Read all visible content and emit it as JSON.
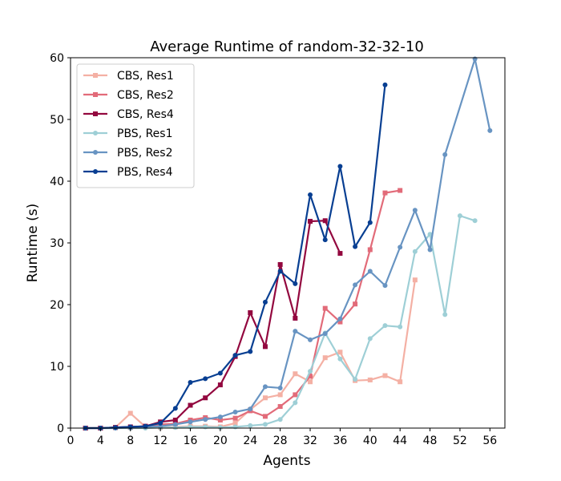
{
  "chart_data": {
    "type": "line",
    "title": "Average Runtime of random-32-32-10",
    "xlabel": "Agents",
    "ylabel": "Runtime (s)",
    "xlim": [
      0,
      58
    ],
    "ylim": [
      0,
      60
    ],
    "xticks": [
      0,
      4,
      8,
      12,
      16,
      20,
      24,
      28,
      32,
      36,
      40,
      44,
      48,
      52,
      56
    ],
    "yticks": [
      0,
      10,
      20,
      30,
      40,
      50,
      60
    ],
    "grid": false,
    "legend_position": "top-left",
    "series": [
      {
        "name": "CBS, Res1",
        "color": "#f4b0a4",
        "marker": "square",
        "x": [
          2,
          4,
          6,
          8,
          10,
          12,
          14,
          16,
          18,
          20,
          22,
          24,
          26,
          28,
          30,
          32,
          34,
          36,
          38,
          40,
          42,
          44,
          46
        ],
        "y": [
          0.0,
          0.0,
          0.1,
          2.4,
          0.2,
          0.1,
          0.2,
          0.3,
          0.3,
          0.2,
          0.8,
          3.0,
          4.9,
          5.4,
          8.8,
          7.5,
          11.4,
          12.3,
          7.7,
          7.8,
          8.5,
          7.5,
          24.0
        ]
      },
      {
        "name": "CBS, Res2",
        "color": "#e26b79",
        "marker": "square",
        "x": [
          2,
          4,
          6,
          8,
          10,
          12,
          14,
          16,
          18,
          20,
          22,
          24,
          26,
          28,
          30,
          32,
          34,
          36,
          38,
          40,
          42,
          44
        ],
        "y": [
          0.0,
          0.0,
          0.1,
          0.1,
          0.3,
          0.6,
          0.7,
          1.3,
          1.7,
          1.3,
          1.6,
          2.8,
          1.9,
          3.5,
          5.4,
          8.4,
          19.4,
          17.2,
          20.1,
          28.9,
          38.1,
          38.5
        ]
      },
      {
        "name": "CBS, Res4",
        "color": "#93083f",
        "marker": "square",
        "x": [
          2,
          4,
          6,
          8,
          10,
          12,
          14,
          16,
          18,
          20,
          22,
          24,
          26,
          28,
          30,
          32,
          34,
          36
        ],
        "y": [
          0.0,
          0.0,
          0.1,
          0.2,
          0.3,
          1.0,
          1.3,
          3.7,
          4.9,
          7.0,
          11.6,
          18.7,
          13.2,
          26.5,
          17.8,
          33.5,
          33.6,
          28.3
        ]
      },
      {
        "name": "PBS, Res1",
        "color": "#9ecfd6",
        "marker": "circle",
        "x": [
          2,
          4,
          6,
          8,
          10,
          12,
          14,
          16,
          18,
          20,
          22,
          24,
          26,
          28,
          30,
          32,
          34,
          36,
          38,
          40,
          42,
          44,
          46,
          48,
          50,
          52,
          54
        ],
        "y": [
          0.0,
          0.0,
          0.0,
          0.0,
          0.0,
          0.1,
          0.1,
          0.2,
          0.2,
          0.1,
          0.2,
          0.4,
          0.6,
          1.4,
          4.1,
          9.2,
          15.4,
          11.2,
          7.9,
          14.5,
          16.6,
          16.4,
          28.6,
          31.4,
          18.4,
          34.4,
          33.6
        ]
      },
      {
        "name": "PBS, Res2",
        "color": "#6894c2",
        "marker": "circle",
        "x": [
          2,
          4,
          6,
          8,
          10,
          12,
          14,
          16,
          18,
          20,
          22,
          24,
          26,
          28,
          30,
          32,
          34,
          36,
          38,
          40,
          42,
          44,
          46,
          48,
          50,
          54,
          56
        ],
        "y": [
          0.0,
          0.0,
          0.0,
          0.1,
          0.2,
          0.3,
          0.6,
          1.0,
          1.4,
          1.8,
          2.6,
          3.1,
          6.7,
          6.5,
          15.7,
          14.3,
          15.3,
          17.7,
          23.2,
          25.4,
          23.1,
          29.3,
          35.3,
          28.9,
          44.3,
          59.8,
          48.2
        ]
      },
      {
        "name": "PBS, Res4",
        "color": "#083f92",
        "marker": "circle",
        "x": [
          2,
          4,
          6,
          8,
          10,
          12,
          14,
          16,
          18,
          20,
          22,
          24,
          26,
          28,
          30,
          32,
          34,
          36,
          38,
          40,
          42
        ],
        "y": [
          0.0,
          0.0,
          0.1,
          0.2,
          0.3,
          0.8,
          3.2,
          7.4,
          8.0,
          8.9,
          11.8,
          12.4,
          20.4,
          25.4,
          23.4,
          37.8,
          30.5,
          42.4,
          29.4,
          33.3,
          55.6
        ]
      }
    ]
  }
}
